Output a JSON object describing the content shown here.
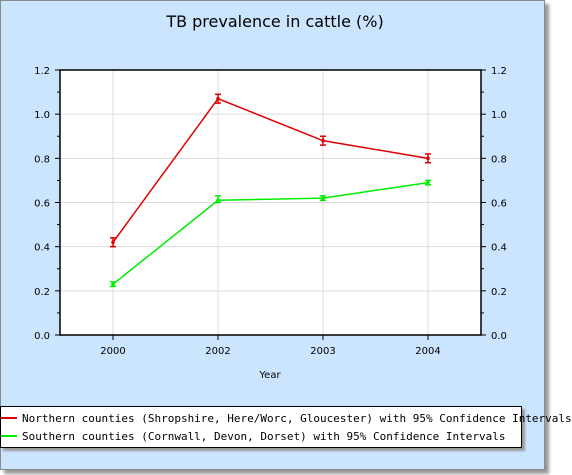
{
  "chart_data": {
    "type": "line",
    "title": "TB prevalence in cattle (%)",
    "xlabel": "Year",
    "ylabel": "",
    "categories": [
      "2000",
      "2002",
      "2003",
      "2004"
    ],
    "ylim": [
      0,
      1.2
    ],
    "yticks": [
      "0.0",
      "0.2",
      "0.4",
      "0.6",
      "0.8",
      "1.0",
      "1.2"
    ],
    "grid": true,
    "legend_position": "bottom",
    "series": [
      {
        "name": "Northern counties (Shropshire, Here/Worc, Gloucester) with 95% Confidence Intervals",
        "color": "#e00000",
        "values": [
          0.42,
          1.07,
          0.88,
          0.8
        ],
        "ci_low": [
          0.4,
          1.05,
          0.86,
          0.78
        ],
        "ci_high": [
          0.44,
          1.09,
          0.9,
          0.82
        ]
      },
      {
        "name": "Southern counties (Cornwall, Devon, Dorset) with 95% Confidence Intervals",
        "color": "#00ee00",
        "values": [
          0.23,
          0.61,
          0.62,
          0.69
        ],
        "ci_low": [
          0.22,
          0.6,
          0.61,
          0.68
        ],
        "ci_high": [
          0.24,
          0.63,
          0.63,
          0.7
        ]
      }
    ]
  }
}
